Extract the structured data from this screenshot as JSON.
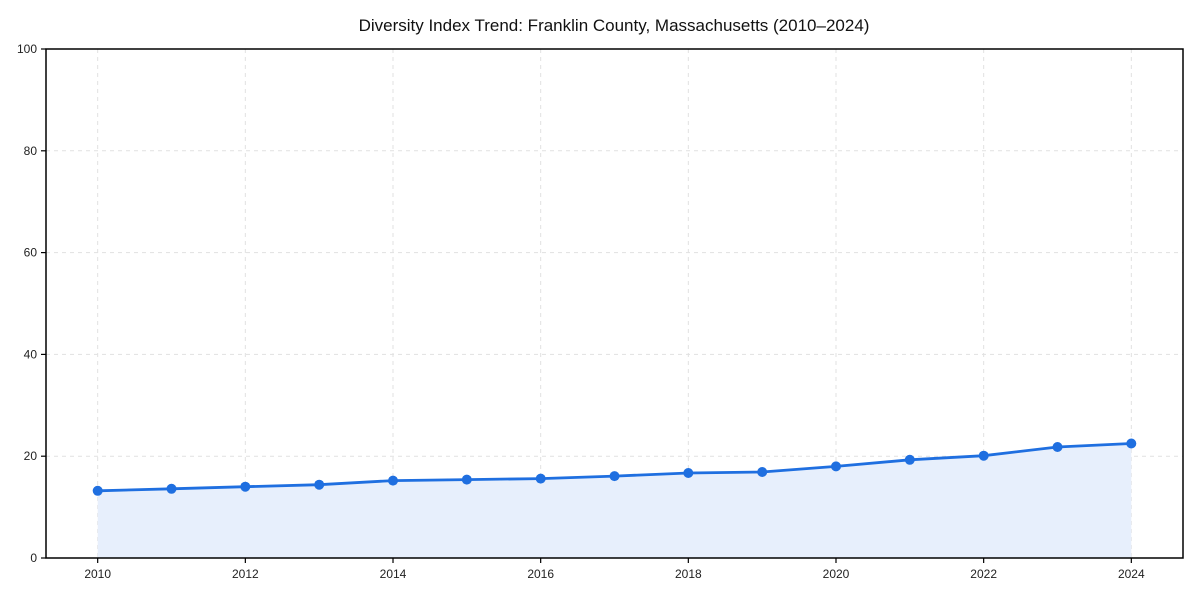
{
  "chart_data": {
    "type": "line",
    "title": "Diversity Index Trend: Franklin County, Massachusetts (2010–2024)",
    "x": [
      2010,
      2011,
      2012,
      2013,
      2014,
      2015,
      2016,
      2017,
      2018,
      2019,
      2020,
      2021,
      2022,
      2023,
      2024
    ],
    "series": [
      {
        "name": "Diversity Index",
        "values": [
          13.2,
          13.6,
          14.0,
          14.4,
          15.2,
          15.4,
          15.6,
          16.1,
          16.7,
          16.9,
          18.0,
          19.3,
          20.1,
          21.8,
          22.5
        ]
      }
    ],
    "xticks": [
      2010,
      2012,
      2014,
      2016,
      2018,
      2020,
      2022,
      2024
    ],
    "yticks": [
      0,
      20,
      40,
      60,
      80,
      100
    ],
    "xlim": [
      2009.3,
      2024.7
    ],
    "ylim": [
      0,
      100
    ],
    "grid": true,
    "grid_style": "dashed",
    "legend": false,
    "area_fill": true,
    "marker": "circle",
    "colors": {
      "line": "#1f6fe0",
      "marker": "#1f6fe0",
      "fill": "#e7effc",
      "grid": "#e1e1e1",
      "axis": "#000000",
      "tick_label": "#222222",
      "title": "#111111",
      "background": "#ffffff"
    }
  }
}
